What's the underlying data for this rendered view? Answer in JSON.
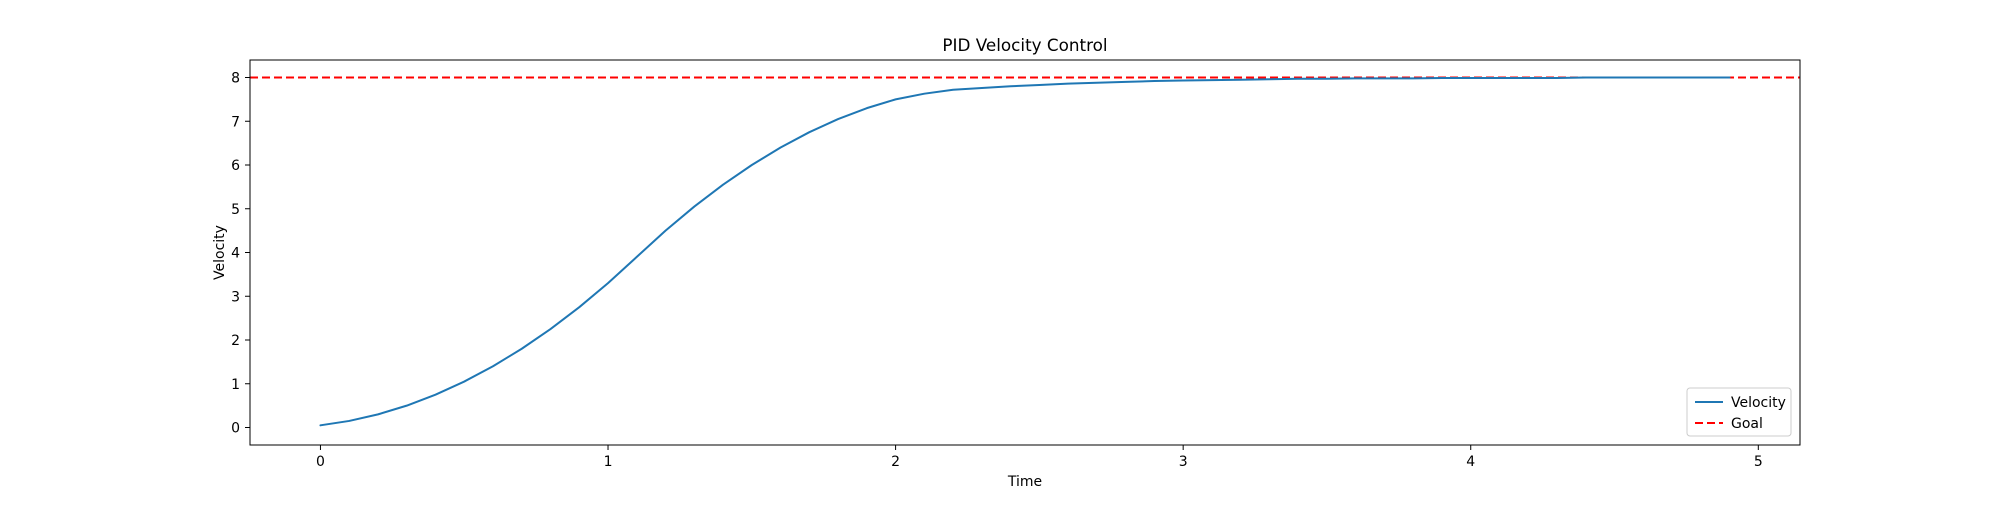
{
  "chart_data": {
    "type": "line",
    "title": "PID Velocity Control",
    "xlabel": "Time",
    "ylabel": "Velocity",
    "xlim": [
      -0.245,
      5.145
    ],
    "ylim": [
      -0.4,
      8.4
    ],
    "xticks": [
      0,
      1,
      2,
      3,
      4,
      5
    ],
    "yticks": [
      0,
      1,
      2,
      3,
      4,
      5,
      6,
      7,
      8
    ],
    "grid": false,
    "legend_position": "lower-right",
    "series": [
      {
        "name": "Velocity",
        "color": "#1f77b4",
        "style": "solid",
        "x": [
          0.0,
          0.1,
          0.2,
          0.3,
          0.4,
          0.5,
          0.6,
          0.7,
          0.8,
          0.9,
          1.0,
          1.1,
          1.2,
          1.3,
          1.4,
          1.5,
          1.6,
          1.7,
          1.8,
          1.9,
          2.0,
          2.1,
          2.2,
          2.3,
          2.4,
          2.5,
          2.6,
          2.7,
          2.8,
          2.9,
          3.0,
          3.1,
          3.2,
          3.3,
          3.4,
          3.5,
          3.6,
          3.7,
          3.8,
          3.9,
          4.0,
          4.1,
          4.2,
          4.3,
          4.4,
          4.5,
          4.6,
          4.7,
          4.8,
          4.9
        ],
        "y": [
          0.05,
          0.15,
          0.3,
          0.5,
          0.75,
          1.05,
          1.4,
          1.8,
          2.25,
          2.75,
          3.3,
          3.9,
          4.5,
          5.05,
          5.55,
          6.0,
          6.4,
          6.75,
          7.05,
          7.3,
          7.5,
          7.63,
          7.72,
          7.76,
          7.8,
          7.83,
          7.86,
          7.88,
          7.9,
          7.92,
          7.93,
          7.94,
          7.95,
          7.96,
          7.97,
          7.97,
          7.98,
          7.98,
          7.98,
          7.99,
          7.99,
          7.99,
          7.99,
          7.99,
          8.0,
          8.0,
          8.0,
          8.0,
          8.0,
          8.0
        ]
      },
      {
        "name": "Goal",
        "color": "#ff0000",
        "style": "dashed",
        "y_constant": 8
      }
    ]
  }
}
